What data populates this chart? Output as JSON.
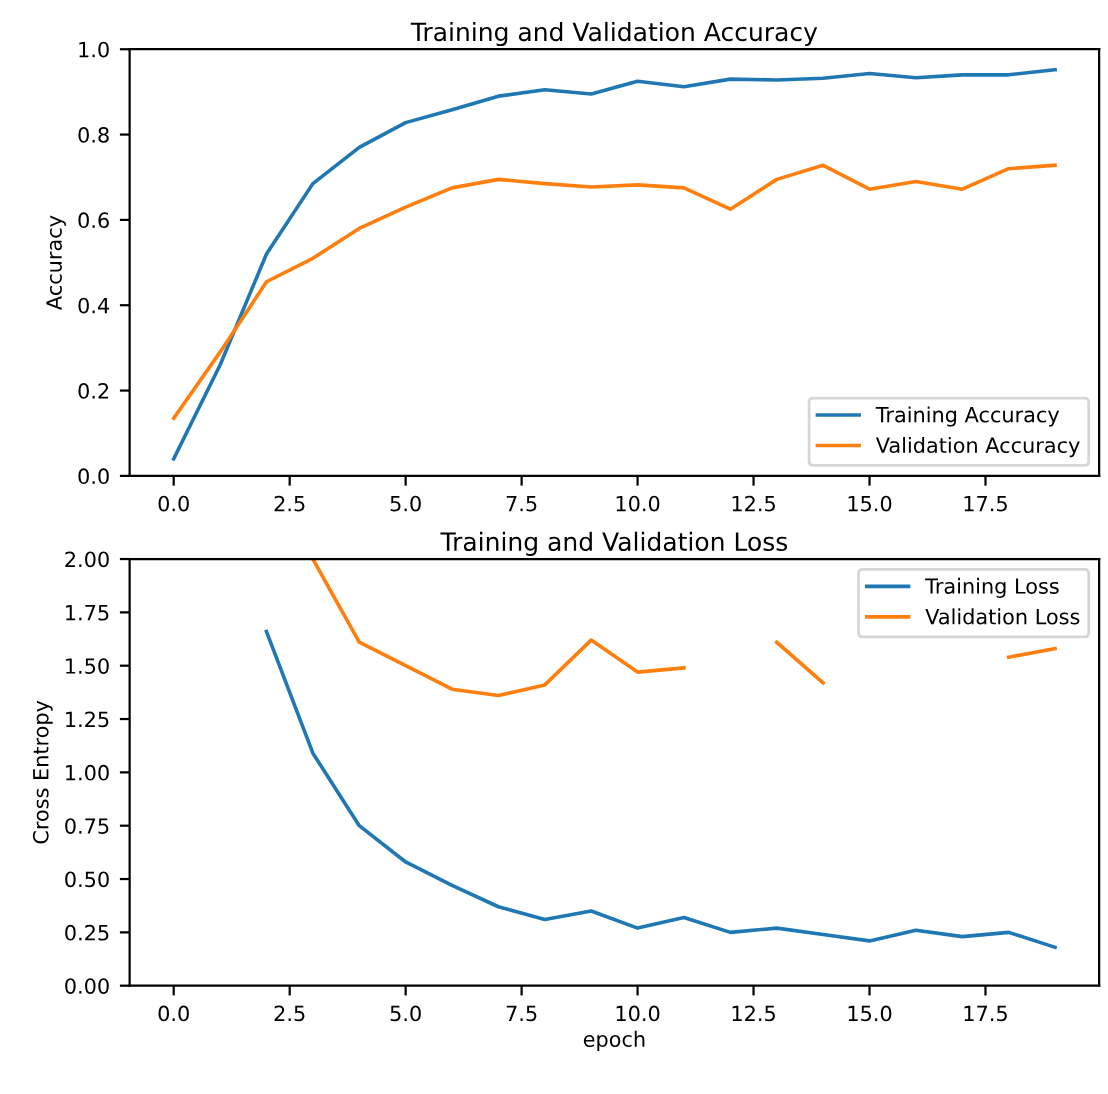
{
  "chart_data": [
    {
      "type": "line",
      "title": "Training and Validation Accuracy",
      "ylabel": "Accuracy",
      "x": [
        0,
        1,
        2,
        3,
        4,
        5,
        6,
        7,
        8,
        9,
        10,
        11,
        12,
        13,
        14,
        15,
        16,
        17,
        18,
        19
      ],
      "series": [
        {
          "name": "Training Accuracy",
          "color": "#1f77b4",
          "values": [
            0.04,
            0.26,
            0.52,
            0.685,
            0.77,
            0.828,
            0.858,
            0.89,
            0.905,
            0.895,
            0.925,
            0.912,
            0.93,
            0.928,
            0.932,
            0.943,
            0.933,
            0.94,
            0.94,
            0.952
          ]
        },
        {
          "name": "Validation Accuracy",
          "color": "#ff7f0e",
          "values": [
            0.135,
            0.29,
            0.455,
            0.51,
            0.58,
            0.63,
            0.675,
            0.695,
            0.685,
            0.677,
            0.682,
            0.675,
            0.625,
            0.695,
            0.728,
            0.672,
            0.69,
            0.672,
            0.72,
            0.728
          ]
        }
      ],
      "xlim": [
        -0.95,
        19.95
      ],
      "xticks": [
        {
          "value": 0,
          "label": "0.0"
        },
        {
          "value": 2.5,
          "label": "2.5"
        },
        {
          "value": 5,
          "label": "5.0"
        },
        {
          "value": 7.5,
          "label": "7.5"
        },
        {
          "value": 10,
          "label": "10.0"
        },
        {
          "value": 12.5,
          "label": "12.5"
        },
        {
          "value": 15,
          "label": "15.0"
        },
        {
          "value": 17.5,
          "label": "17.5"
        }
      ],
      "ylim": [
        0,
        1
      ],
      "yticks": [
        {
          "value": 0,
          "label": "0.0"
        },
        {
          "value": 0.2,
          "label": "0.2"
        },
        {
          "value": 0.4,
          "label": "0.4"
        },
        {
          "value": 0.6,
          "label": "0.6"
        },
        {
          "value": 0.8,
          "label": "0.8"
        },
        {
          "value": 1,
          "label": "1.0"
        }
      ],
      "grid": false,
      "legend": "bottom right",
      "line_style": "solid",
      "marker": "none"
    },
    {
      "type": "line",
      "title": "Training and Validation Loss",
      "xlabel": "epoch",
      "ylabel": "Cross Entropy",
      "x": [
        2,
        3,
        4,
        5,
        6,
        7,
        8,
        9,
        10,
        11,
        12,
        13,
        14,
        15,
        16,
        17,
        18,
        19
      ],
      "series": [
        {
          "name": "Training Loss",
          "color": "#1f77b4",
          "values": [
            1.66,
            1.09,
            0.75,
            0.58,
            0.47,
            0.37,
            0.31,
            0.35,
            0.27,
            0.32,
            0.25,
            0.27,
            0.24,
            0.21,
            0.26,
            0.23,
            0.25,
            0.18
          ]
        },
        {
          "name": "Validation Loss",
          "color": "#ff7f0e",
          "values": [
            null,
            2.0,
            1.61,
            1.5,
            1.39,
            1.36,
            1.41,
            1.62,
            1.47,
            1.49,
            null,
            1.61,
            1.42,
            null,
            null,
            null,
            1.54,
            1.58
          ]
        }
      ],
      "xlim": [
        -0.95,
        19.95
      ],
      "xticks": [
        {
          "value": 0,
          "label": "0.0"
        },
        {
          "value": 2.5,
          "label": "2.5"
        },
        {
          "value": 5,
          "label": "5.0"
        },
        {
          "value": 7.5,
          "label": "7.5"
        },
        {
          "value": 10,
          "label": "10.0"
        },
        {
          "value": 12.5,
          "label": "12.5"
        },
        {
          "value": 15,
          "label": "15.0"
        },
        {
          "value": 17.5,
          "label": "17.5"
        }
      ],
      "ylim": [
        0,
        2
      ],
      "yticks": [
        {
          "value": 0,
          "label": "0.00"
        },
        {
          "value": 0.25,
          "label": "0.25"
        },
        {
          "value": 0.5,
          "label": "0.50"
        },
        {
          "value": 0.75,
          "label": "0.75"
        },
        {
          "value": 1,
          "label": "1.00"
        },
        {
          "value": 1.25,
          "label": "1.25"
        },
        {
          "value": 1.5,
          "label": "1.50"
        },
        {
          "value": 1.75,
          "label": "1.75"
        },
        {
          "value": 2,
          "label": "2.00"
        }
      ],
      "grid": false,
      "legend": "top right",
      "line_style": "solid",
      "marker": "none"
    }
  ]
}
